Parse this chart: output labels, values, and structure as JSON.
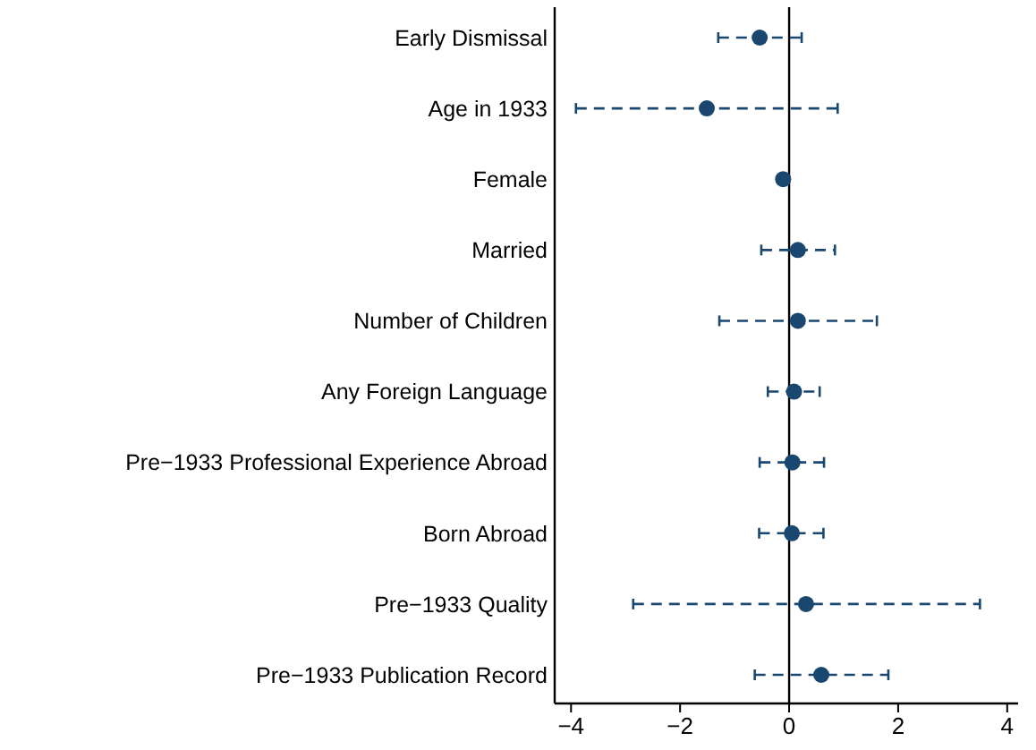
{
  "chart_data": {
    "type": "scatter",
    "orientation": "horizontal",
    "categories": [
      "Early Dismissal",
      "Age in 1933",
      "Female",
      "Married",
      "Number of Children",
      "Any Foreign Language",
      "Pre−1933 Professional Experience Abroad",
      "Born Abroad",
      "Pre−1933 Quality",
      "Pre−1933 Publication Record"
    ],
    "values": [
      -0.54,
      -1.51,
      -0.11,
      0.16,
      0.16,
      0.09,
      0.06,
      0.05,
      0.31,
      0.59
    ],
    "errors": [
      [
        -1.3,
        0.23
      ],
      [
        -3.91,
        0.89
      ],
      null,
      [
        -0.51,
        0.84
      ],
      [
        -1.28,
        1.61
      ],
      [
        -0.39,
        0.56
      ],
      [
        -0.54,
        0.64
      ],
      [
        -0.55,
        0.63
      ],
      [
        -2.86,
        3.5
      ],
      [
        -0.63,
        1.82
      ]
    ],
    "color": "#1a476f",
    "marker": "circle",
    "line_style": "dashed",
    "xlim": [
      -4.3,
      4.2
    ],
    "xticks": [
      {
        "value": -4,
        "label": "−4"
      },
      {
        "value": -2,
        "label": "−2"
      },
      0,
      2,
      4
    ],
    "ref_lines": [
      {
        "axis": "x",
        "value": 0,
        "color": "#000000"
      }
    ],
    "grid": false
  }
}
